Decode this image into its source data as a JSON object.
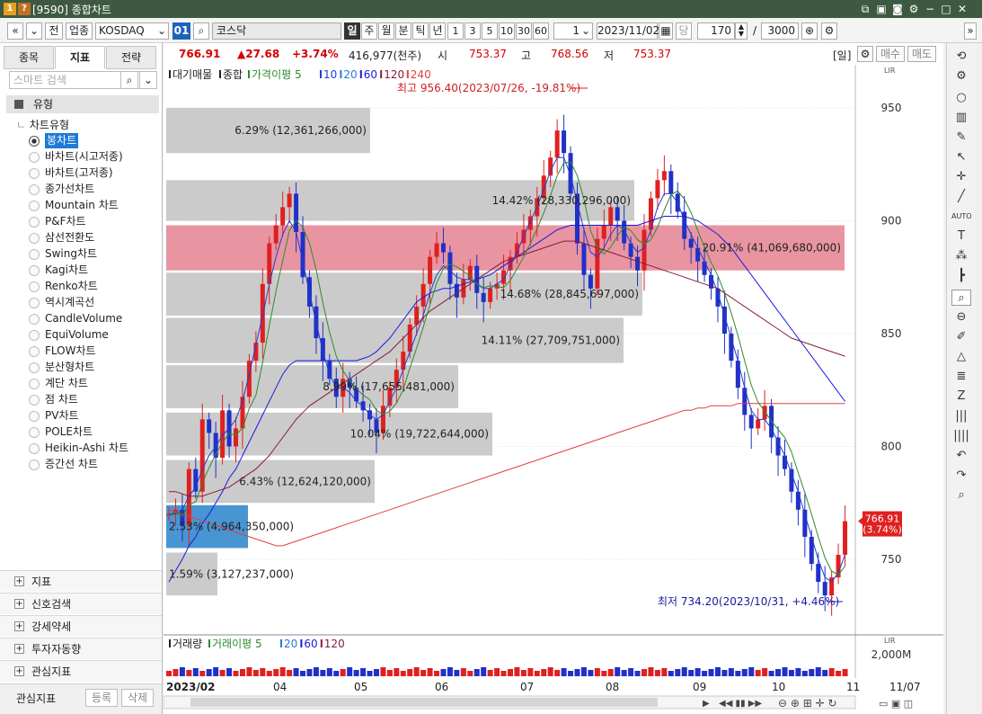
{
  "window": {
    "code_badge": "1",
    "help_badge": "?",
    "title": "[9590] 종합차트"
  },
  "toolbar": {
    "nav_prev": "«",
    "nav_down": "»",
    "jeon": "전",
    "upjong": "업종",
    "market": "KOSDAQ",
    "market_code": "01",
    "index_name": "코스닥",
    "periods": [
      "일",
      "주",
      "월",
      "분",
      "틱",
      "년"
    ],
    "minutes": [
      "1",
      "3",
      "5",
      "10",
      "30",
      "60"
    ],
    "interval_value": "1",
    "date": "2023/11/02",
    "dang": "당",
    "count": "170",
    "slash": "/",
    "total": "3000"
  },
  "tabs": [
    "종목",
    "지표",
    "전략"
  ],
  "search_placeholder": "스마트 검색",
  "tree": {
    "root": "유형",
    "group": "차트유형",
    "items": [
      "봉차트",
      "바차트(시고저종)",
      "바차트(고저종)",
      "종가선차트",
      "Mountain 차트",
      "P&F차트",
      "삼선전환도",
      "Swing차트",
      "Kagi차트",
      "Renko차트",
      "역시계곡선",
      "CandleVolume",
      "EquiVolume",
      "FLOW차트",
      "분산형차트",
      "계단 차트",
      "점 차트",
      "PV차트",
      "POLE차트",
      "Heikin-Ashi 차트",
      "증간선 차트"
    ],
    "selected_index": 0
  },
  "accordion": [
    "지표",
    "신호검색",
    "강세약세",
    "투자자동향",
    "관심지표"
  ],
  "footer": {
    "label": "관심지표",
    "register": "등록",
    "delete": "삭제"
  },
  "quote": {
    "price": "766.91",
    "change": "▲27.68",
    "change_pct": "+3.74%",
    "volume": "416,977(천주)",
    "open_label": "시",
    "open": "753.37",
    "high_label": "고",
    "high": "768.56",
    "low_label": "저",
    "low": "753.37",
    "period_tag": "[일]",
    "buy": "매수",
    "sell": "매도"
  },
  "legend": {
    "items": [
      "대기매물",
      "종합",
      "가격이평 5",
      "10",
      "20",
      "60",
      "120",
      "240"
    ],
    "colors": [
      "#222222",
      "#222222",
      "#2e8b2e",
      "#1c3fd4",
      "#2a7ad8",
      "#1a1ae0",
      "#8b1a3a",
      "#e04040"
    ]
  },
  "annotations": {
    "high": "최고 956.40(2023/07/26, -19.81%)",
    "low": "최저 734.20(2023/10/31, +4.46%)",
    "price_tag": "766.91",
    "price_tag_pct": "(3.74%)"
  },
  "volume_panel": {
    "legend": [
      "거래량",
      "거래이평 5",
      "20",
      "60",
      "120"
    ],
    "legend_colors": [
      "#222222",
      "#2e8b2e",
      "#2a7ad8",
      "#1a1ae0",
      "#8b1a3a"
    ],
    "axis_label": "2,000M",
    "x_labels": [
      "2023/02",
      "04",
      "05",
      "06",
      "07",
      "08",
      "09",
      "10",
      "11"
    ],
    "last_date": "11/07"
  },
  "chart_data": {
    "type": "candlestick",
    "y_ticks": [
      750,
      800,
      850,
      900,
      950
    ],
    "ylim": [
      725,
      970
    ],
    "volume_profile": [
      {
        "label": "6.29% (12,361,266,000)",
        "low": 930,
        "high": 950,
        "pct": 6.29,
        "highlight": false
      },
      {
        "label": "14.42% (28,330,296,000)",
        "low": 900,
        "high": 918,
        "pct": 14.42,
        "highlight": false
      },
      {
        "label": "20.91% (41,069,680,000)",
        "low": 878,
        "high": 898,
        "pct": 20.91,
        "highlight": true
      },
      {
        "label": "14.68% (28,845,697,000)",
        "low": 858,
        "high": 877,
        "pct": 14.68,
        "highlight": false
      },
      {
        "label": "14.11% (27,709,751,000)",
        "low": 837,
        "high": 857,
        "pct": 14.11,
        "highlight": false
      },
      {
        "label": "8.99% (17,655,481,000)",
        "low": 817,
        "high": 836,
        "pct": 8.99,
        "highlight": false
      },
      {
        "label": "10.04% (19,722,644,000)",
        "low": 796,
        "high": 815,
        "pct": 10.04,
        "highlight": false
      },
      {
        "label": "6.43% (12,624,120,000)",
        "low": 775,
        "high": 794,
        "pct": 6.43,
        "highlight": false
      },
      {
        "label": "2.53% (4,964,350,000)",
        "low": 755,
        "high": 774,
        "pct": 2.53,
        "highlight": false,
        "blue": true
      },
      {
        "label": "1.59% (3,127,237,000)",
        "low": 734,
        "high": 753,
        "pct": 1.59,
        "highlight": false
      }
    ],
    "close_path": [
      770,
      772,
      765,
      790,
      780,
      812,
      806,
      795,
      816,
      800,
      808,
      822,
      838,
      846,
      872,
      890,
      898,
      906,
      912,
      895,
      875,
      862,
      848,
      838,
      830,
      822,
      830,
      826,
      820,
      816,
      812,
      806,
      818,
      826,
      834,
      842,
      854,
      862,
      872,
      884,
      890,
      886,
      872,
      866,
      874,
      880,
      868,
      864,
      870,
      872,
      878,
      884,
      890,
      896,
      902,
      910,
      920,
      928,
      940,
      930,
      912,
      890,
      876,
      870,
      892,
      898,
      906,
      900,
      890,
      884,
      878,
      896,
      910,
      918,
      922,
      912,
      904,
      892,
      888,
      882,
      876,
      870,
      862,
      850,
      838,
      826,
      814,
      808,
      812,
      818,
      804,
      796,
      790,
      780,
      772,
      760,
      748,
      740,
      734,
      742,
      752,
      766.91
    ],
    "ma_lines": [
      {
        "name": "10",
        "color": "#1c3fd4",
        "values": [
          770,
          770,
          772,
          778,
          782,
          790,
          796,
          800,
          805,
          808,
          812,
          820,
          832,
          845,
          858,
          872,
          884,
          894,
          900,
          895,
          882,
          868,
          855,
          842,
          832,
          826,
          826,
          824,
          820,
          818,
          814,
          812,
          814,
          820,
          826,
          834,
          842,
          850,
          858,
          868,
          876,
          880,
          878,
          875,
          874,
          874,
          872,
          870,
          870,
          872,
          874,
          880,
          886,
          893,
          900,
          906,
          914,
          922,
          928,
          928,
          920,
          908,
          896,
          886,
          884,
          888,
          894,
          898,
          896,
          890,
          886,
          888,
          896,
          906,
          912,
          912,
          908,
          900,
          894,
          888,
          882,
          876,
          868,
          858,
          848,
          838,
          826,
          816,
          812,
          812,
          808,
          802,
          796,
          788,
          780,
          770,
          760,
          750,
          742,
          740,
          744,
          752
        ]
      },
      {
        "name": "60",
        "color": "#1a1ae0",
        "values": [
          740,
          745,
          750,
          756,
          760,
          766,
          770,
          775,
          780,
          786,
          790,
          796,
          802,
          808,
          814,
          820,
          826,
          832,
          836,
          838,
          838,
          838,
          838,
          838,
          838,
          838,
          838,
          838,
          838,
          839,
          840,
          842,
          845,
          848,
          852,
          856,
          860,
          864,
          866,
          868,
          869,
          870,
          870,
          871,
          872,
          873,
          874,
          875,
          876,
          878,
          880,
          882,
          884,
          886,
          888,
          890,
          892,
          894,
          896,
          897,
          898,
          898,
          898,
          898,
          898,
          898,
          898,
          898,
          898,
          898,
          898,
          899,
          900,
          901,
          902,
          902,
          902,
          902,
          901,
          900,
          898,
          896,
          894,
          891,
          888,
          884,
          880,
          876,
          872,
          868,
          864,
          860,
          856,
          852,
          848,
          844,
          840,
          836,
          832,
          828,
          824,
          820
        ]
      },
      {
        "name": "120",
        "color": "#8b1a3a",
        "values": [
          780,
          780,
          779,
          778,
          778,
          778,
          779,
          780,
          781,
          782,
          784,
          786,
          788,
          790,
          793,
          796,
          800,
          804,
          808,
          812,
          815,
          818,
          820,
          822,
          824,
          826,
          828,
          830,
          832,
          834,
          836,
          838,
          840,
          842,
          845,
          848,
          851,
          854,
          857,
          860,
          862,
          864,
          866,
          868,
          870,
          872,
          874,
          876,
          878,
          880,
          882,
          883,
          884,
          885,
          886,
          887,
          888,
          889,
          890,
          891,
          891,
          891,
          890,
          889,
          888,
          887,
          886,
          885,
          884,
          883,
          882,
          881,
          880,
          879,
          878,
          877,
          876,
          875,
          874,
          873,
          872,
          871,
          870,
          868,
          866,
          864,
          862,
          860,
          858,
          856,
          854,
          852,
          850,
          848,
          847,
          846,
          845,
          844,
          843,
          842,
          841,
          840
        ]
      },
      {
        "name": "240",
        "color": "#e04040",
        "values": [
          772,
          771,
          770,
          769,
          768,
          767,
          766,
          765,
          764,
          763,
          762,
          761,
          760,
          759,
          758,
          757,
          756,
          756,
          757,
          758,
          759,
          760,
          761,
          762,
          763,
          764,
          765,
          766,
          767,
          768,
          769,
          770,
          771,
          772,
          773,
          774,
          775,
          776,
          777,
          778,
          779,
          780,
          781,
          782,
          783,
          784,
          785,
          786,
          787,
          788,
          789,
          790,
          791,
          792,
          793,
          794,
          795,
          796,
          797,
          798,
          799,
          800,
          801,
          802,
          803,
          804,
          805,
          806,
          807,
          808,
          809,
          810,
          811,
          812,
          813,
          814,
          815,
          816,
          816,
          817,
          817,
          818,
          818,
          818,
          818,
          819,
          819,
          819,
          819,
          819,
          819,
          819,
          819,
          819,
          819,
          819,
          819,
          819,
          819,
          819,
          819,
          819
        ]
      }
    ]
  }
}
